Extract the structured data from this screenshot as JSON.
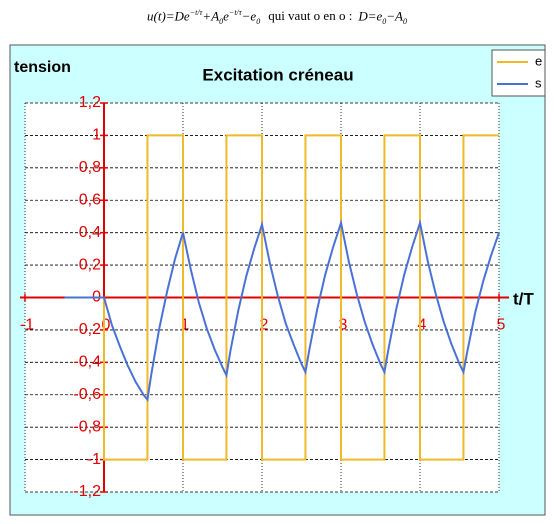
{
  "caption": {
    "parts": [
      "u(t)=De",
      "−t/τ",
      "+A",
      "0",
      "e",
      "−t/τ",
      "−e",
      "0",
      "qui vaut o en o :",
      "D=e",
      "0",
      "−A",
      "0"
    ]
  },
  "chart_data": {
    "type": "line",
    "title": "Excitation créneau",
    "y_label": "tension",
    "x_label": "t/T",
    "xlim": [
      -1,
      5
    ],
    "ylim": [
      -1.2,
      1.2
    ],
    "xticks": [
      -1,
      0,
      1,
      2,
      3,
      4,
      5
    ],
    "yticks": [
      {
        "value": -1.2,
        "label": "-1,2"
      },
      {
        "value": -1,
        "label": "-1"
      },
      {
        "value": -0.8,
        "label": "-0,8"
      },
      {
        "value": -0.6,
        "label": "-0,6"
      },
      {
        "value": -0.4,
        "label": "-0,4"
      },
      {
        "value": -0.2,
        "label": "-0,2"
      },
      0,
      {
        "value": 0.2,
        "label": "0,2"
      },
      {
        "value": 0.4,
        "label": "0,4"
      },
      {
        "value": 0.6,
        "label": "0,6"
      },
      {
        "value": 0.8,
        "label": "0,8"
      },
      1,
      {
        "value": 1.2,
        "label": "1,2"
      }
    ],
    "grid": true,
    "legend": "top-right",
    "series": [
      {
        "name": "e",
        "color": "#f0b928",
        "x": [
          -0.5,
          0,
          0,
          0.55,
          0.55,
          1,
          1,
          1.55,
          1.55,
          2,
          2,
          2.55,
          2.55,
          3,
          3,
          3.55,
          3.55,
          4,
          4,
          4.55,
          4.55,
          5
        ],
        "values": [
          0,
          0,
          -1,
          -1,
          1,
          1,
          -1,
          -1,
          1,
          1,
          -1,
          -1,
          1,
          1,
          -1,
          -1,
          1,
          1,
          -1,
          -1,
          1,
          1
        ]
      },
      {
        "name": "s",
        "color": "#4a72d6",
        "x": [
          -0.5,
          0,
          0.1,
          0.2,
          0.3,
          0.4,
          0.5,
          0.55,
          0.6,
          0.7,
          0.8,
          0.9,
          1,
          1.1,
          1.2,
          1.3,
          1.4,
          1.5,
          1.55,
          1.6,
          1.7,
          1.8,
          1.9,
          2,
          2.1,
          2.2,
          2.3,
          2.4,
          2.5,
          2.55,
          2.6,
          2.7,
          2.8,
          2.9,
          3,
          3.1,
          3.2,
          3.3,
          3.4,
          3.5,
          3.55,
          3.6,
          3.7,
          3.8,
          3.9,
          4,
          4.1,
          4.2,
          4.3,
          4.4,
          4.5,
          4.55,
          4.6,
          4.7,
          4.8,
          4.9,
          5
        ],
        "values": [
          0,
          0,
          -0.17,
          -0.3,
          -0.42,
          -0.52,
          -0.6,
          -0.63,
          -0.47,
          -0.19,
          0.04,
          0.24,
          0.4,
          0.17,
          -0.03,
          -0.19,
          -0.32,
          -0.43,
          -0.48,
          -0.33,
          -0.08,
          0.13,
          0.3,
          0.45,
          0.21,
          0.01,
          -0.16,
          -0.29,
          -0.41,
          -0.46,
          -0.32,
          -0.07,
          0.14,
          0.31,
          0.46,
          0.22,
          0.02,
          -0.15,
          -0.29,
          -0.41,
          -0.46,
          -0.32,
          -0.07,
          0.14,
          0.31,
          0.46,
          0.22,
          0.02,
          -0.15,
          -0.29,
          -0.41,
          -0.46,
          -0.33,
          -0.09,
          0.1,
          0.26,
          0.4
        ]
      }
    ]
  }
}
